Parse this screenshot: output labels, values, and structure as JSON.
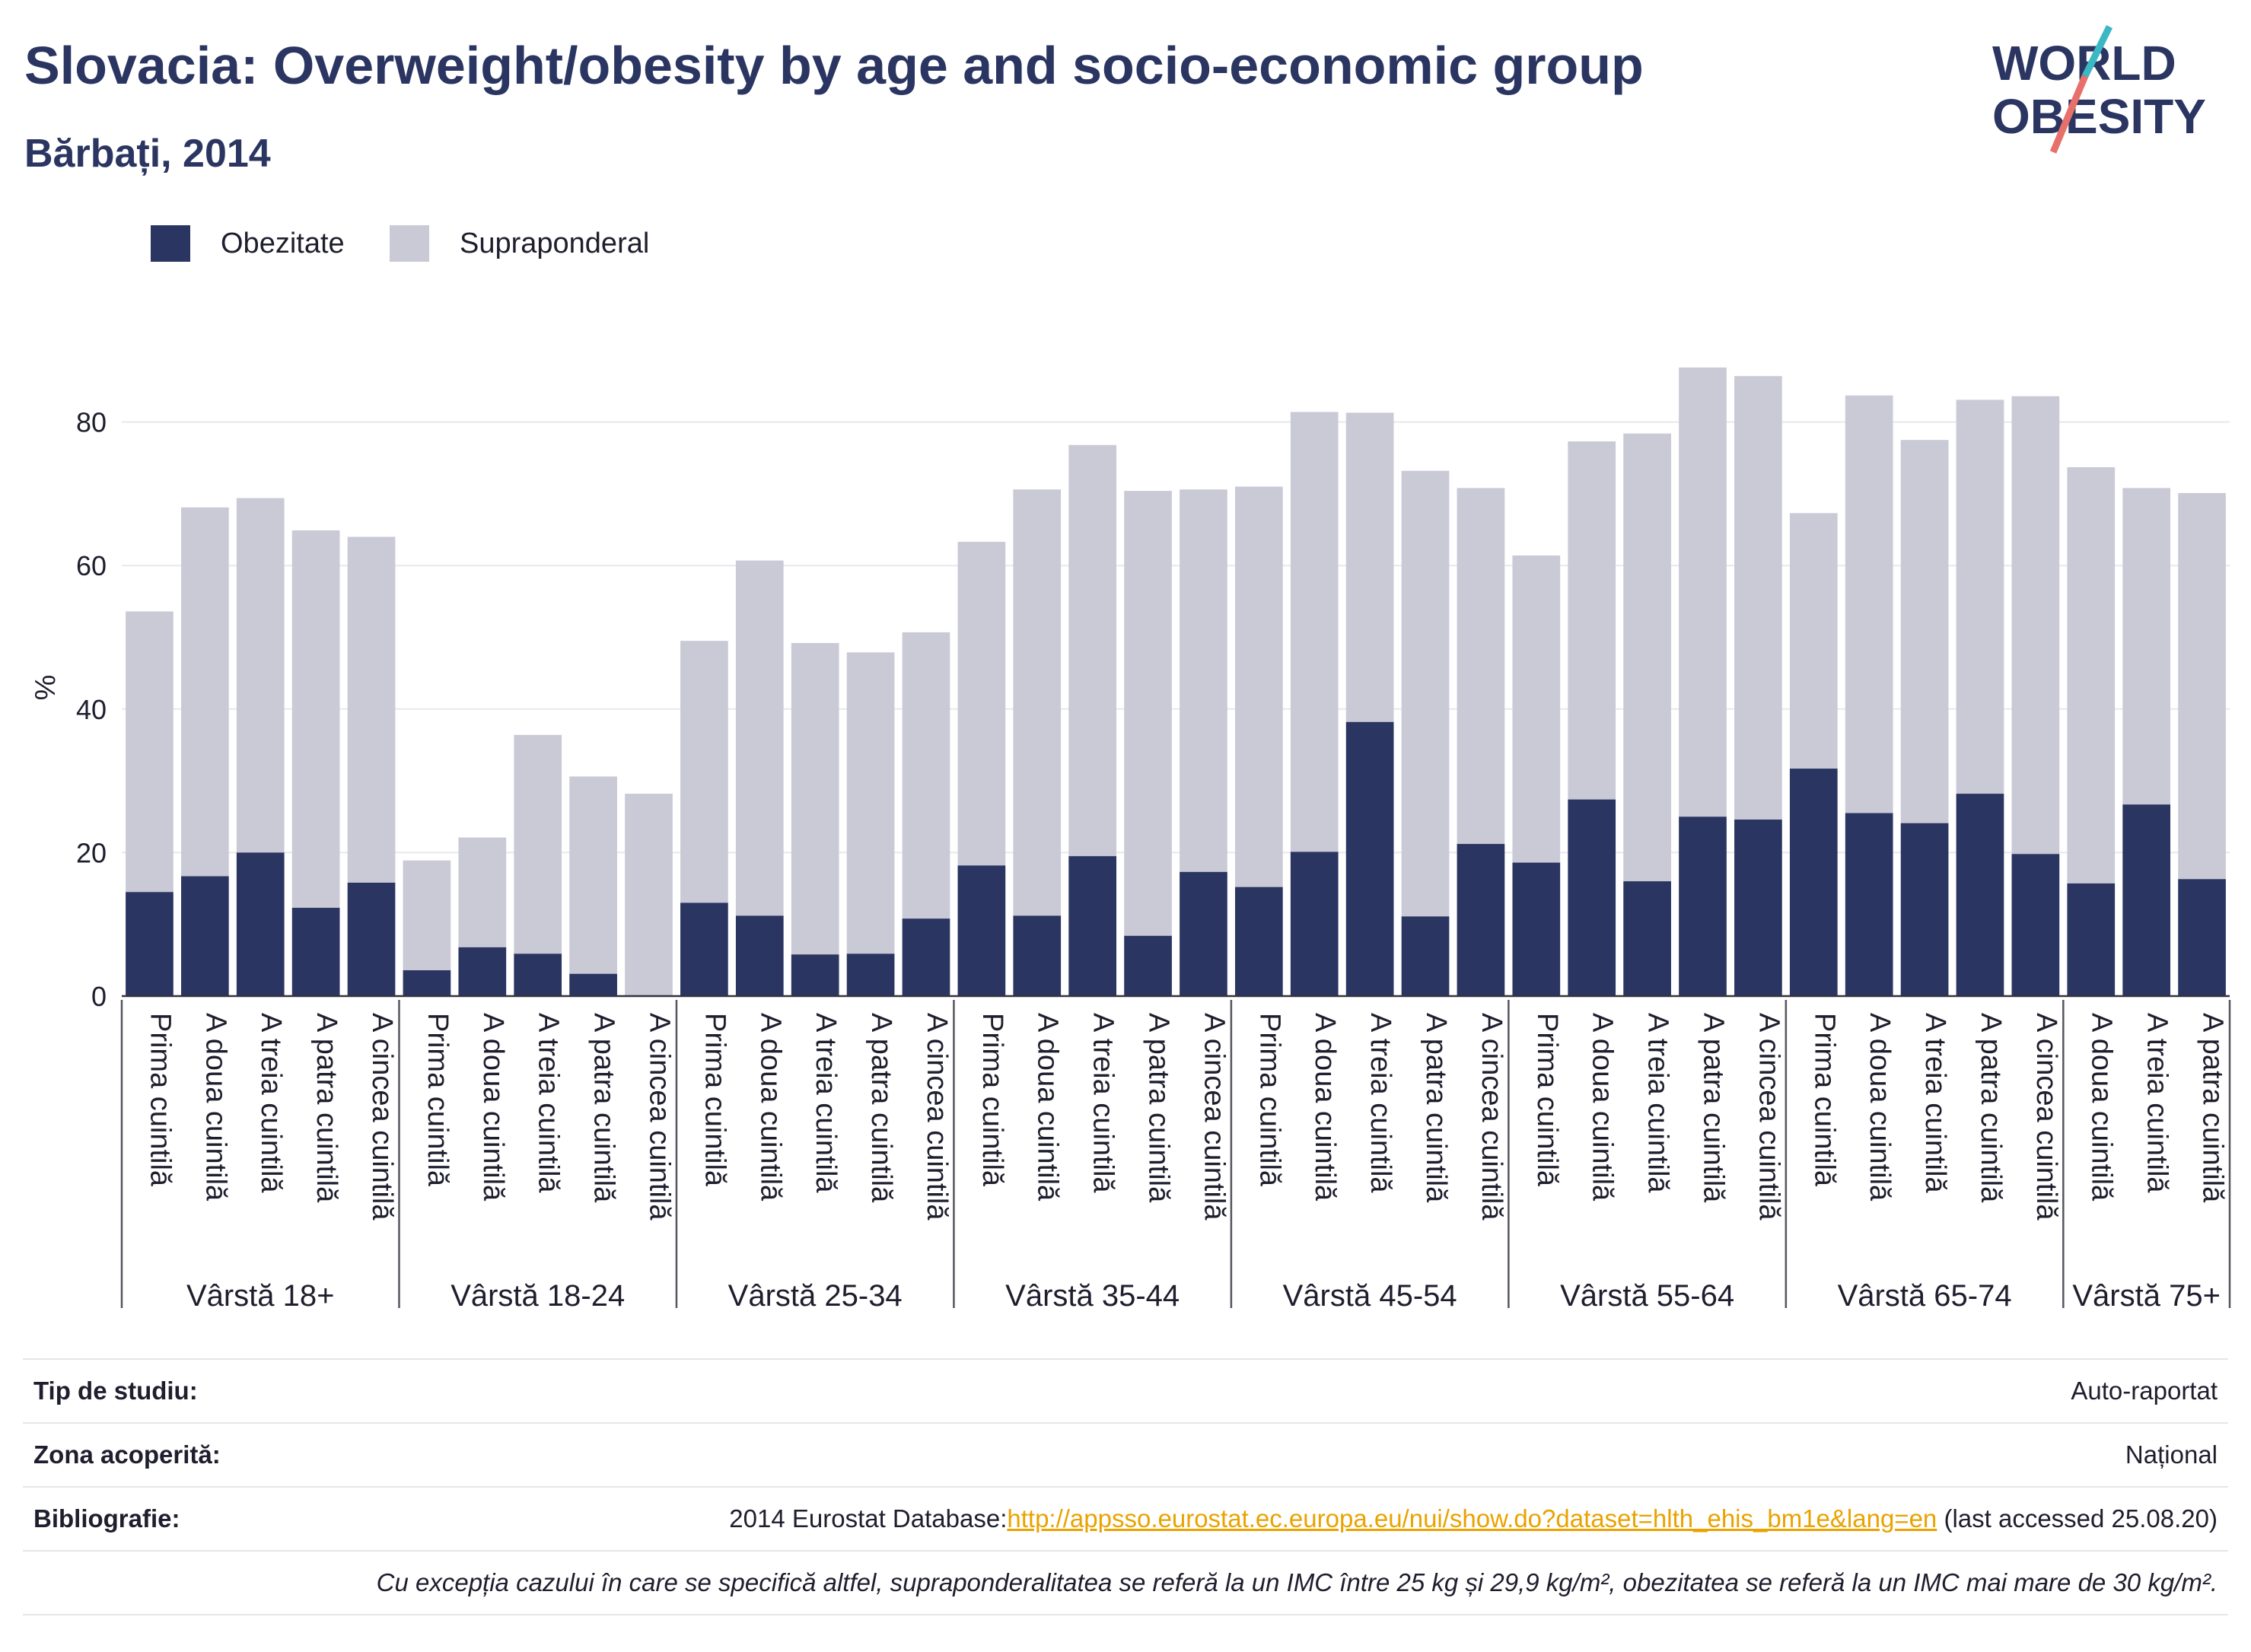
{
  "header": {
    "title": "Slovacia: Overweight/obesity by age and socio-economic group",
    "subtitle": "Bărbați, 2014"
  },
  "logo": {
    "line1": "WORLD",
    "line2": "OBESITY"
  },
  "legend": [
    {
      "label": "Obezitate",
      "color": "#2b3561"
    },
    {
      "label": "Supraponderal",
      "color": "#c9cad6"
    }
  ],
  "info": {
    "study_type_label": "Tip de studiu:",
    "study_type_value": "Auto-raportat",
    "area_label": "Zona acoperită:",
    "area_value": "Național",
    "biblio_label": "Bibliografie:",
    "biblio_prefix": "2014 Eurostat Database:",
    "biblio_link": "http://appsso.eurostat.ec.europa.eu/nui/show.do?dataset=hlth_ehis_bm1e&lang=en",
    "biblio_suffix": " (last accessed 25.08.20)",
    "note": "Cu excepția cazului în care se specifică altfel, supraponderalitatea se referă la un IMC între 25 kg și 29,9 kg/m², obezitatea se referă la un IMC mai mare de 30 kg/m²."
  },
  "chart_data": {
    "type": "bar",
    "stacked": true,
    "ylabel": "%",
    "ylim": [
      0,
      90
    ],
    "yticks": [
      0,
      20,
      40,
      60,
      80
    ],
    "grid": true,
    "legend_position": "top-left",
    "colors": {
      "obesity": "#2b3561",
      "overweight": "#c9cad6"
    },
    "groups": [
      {
        "label": "Vârstă 18+",
        "categories": [
          "Prima cuintilă",
          "A doua cuintilă",
          "A treia cuintilă",
          "A patra cuintilă",
          "A cincea cuintilă"
        ],
        "obesity": [
          14.5,
          16.7,
          20.0,
          12.3,
          15.8
        ],
        "total": [
          53.6,
          68.1,
          69.4,
          64.9,
          64.0
        ]
      },
      {
        "label": "Vârstă 18-24",
        "categories": [
          "Prima cuintilă",
          "A doua cuintilă",
          "A treia cuintilă",
          "A patra cuintilă",
          "A cincea cuintilă"
        ],
        "obesity": [
          3.6,
          6.8,
          5.9,
          3.1,
          0
        ],
        "total": [
          18.9,
          22.1,
          36.4,
          30.6,
          28.2
        ]
      },
      {
        "label": "Vârstă 25-34",
        "categories": [
          "Prima cuintilă",
          "A doua cuintilă",
          "A treia cuintilă",
          "A patra cuintilă",
          "A cincea cuintilă"
        ],
        "obesity": [
          13.0,
          11.2,
          5.8,
          5.9,
          10.8
        ],
        "total": [
          49.5,
          60.7,
          49.2,
          47.9,
          50.7
        ]
      },
      {
        "label": "Vârstă 35-44",
        "categories": [
          "Prima cuintilă",
          "A doua cuintilă",
          "A treia cuintilă",
          "A patra cuintilă",
          "A cincea cuintilă"
        ],
        "obesity": [
          18.2,
          11.2,
          19.5,
          8.4,
          17.3
        ],
        "total": [
          63.3,
          70.6,
          76.8,
          70.4,
          70.6
        ]
      },
      {
        "label": "Vârstă 45-54",
        "categories": [
          "Prima cuintilă",
          "A doua cuintilă",
          "A treia cuintilă",
          "A patra cuintilă",
          "A cincea cuintilă"
        ],
        "obesity": [
          15.2,
          20.1,
          38.2,
          11.1,
          21.2
        ],
        "total": [
          71.0,
          81.4,
          81.3,
          73.2,
          70.8
        ]
      },
      {
        "label": "Vârstă 55-64",
        "categories": [
          "Prima cuintilă",
          "A doua cuintilă",
          "A treia cuintilă",
          "A patra cuintilă",
          "A cincea cuintilă"
        ],
        "obesity": [
          18.6,
          27.4,
          16.0,
          25.0,
          24.6
        ],
        "total": [
          61.4,
          77.3,
          78.4,
          87.6,
          86.4
        ]
      },
      {
        "label": "Vârstă 65-74",
        "categories": [
          "Prima cuintilă",
          "A doua cuintilă",
          "A treia cuintilă",
          "A patra cuintilă",
          "A cincea cuintilă"
        ],
        "obesity": [
          31.7,
          25.5,
          24.1,
          28.2,
          19.8
        ],
        "total": [
          67.3,
          83.7,
          77.5,
          83.1,
          83.6
        ]
      },
      {
        "label": "Vârstă 75+",
        "categories": [
          "A doua cuintilă",
          "A treia cuintilă",
          "A patra cuintilă"
        ],
        "obesity": [
          15.7,
          26.7,
          16.3
        ],
        "total": [
          73.7,
          70.8,
          70.1
        ]
      }
    ]
  }
}
